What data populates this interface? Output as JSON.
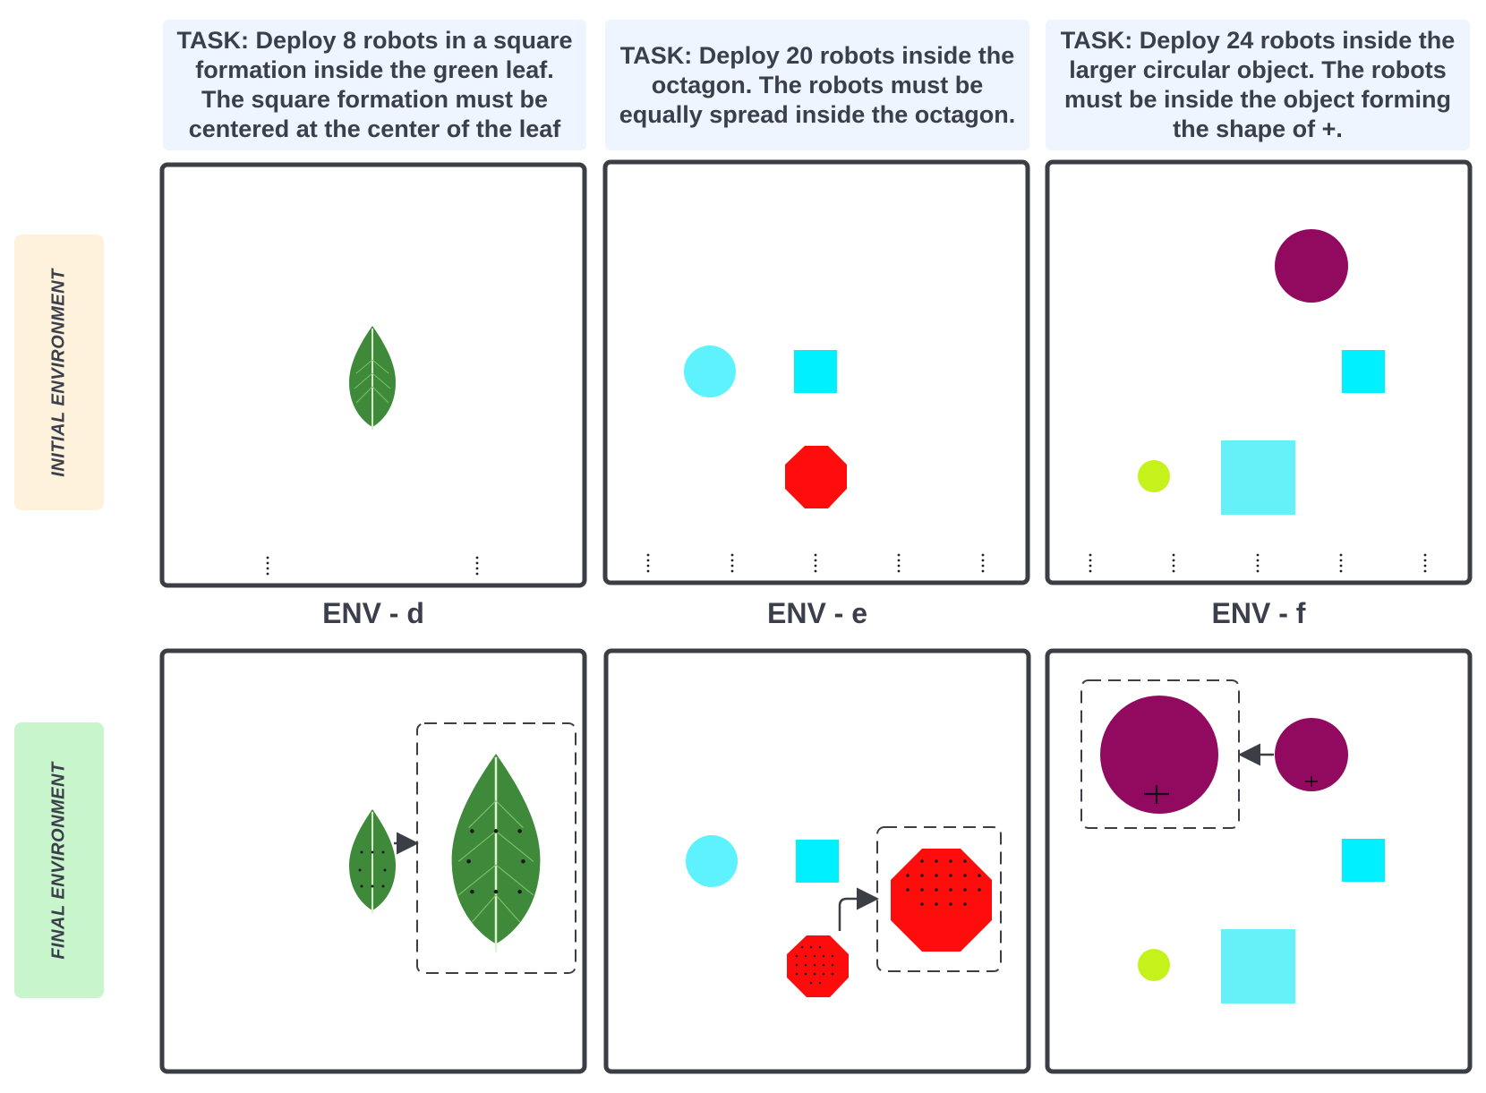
{
  "tasks": {
    "d": "TASK: Deploy 8 robots in a square formation inside the green leaf. The square formation must be centered at the center of the leaf",
    "e": "TASK: Deploy 20 robots inside the octagon. The robots must be equally spread inside the octagon.",
    "f": "TASK: Deploy 24 robots inside the larger circular object. The robots must be inside the object forming the shape of +."
  },
  "row_labels": {
    "initial": "INITIAL ENVIRONMENT",
    "final": "FINAL ENVIRONMENT"
  },
  "env_labels": {
    "d": "ENV - d",
    "e": "ENV - e",
    "f": "ENV - f"
  },
  "colors": {
    "text": "#3a3f4b",
    "task_bg": "#eef5ff",
    "initial_bg": "#fff2dc",
    "final_bg": "#c8f5cc",
    "panel_border": "#3b3f45",
    "leaf": "#3f8a3a",
    "leaf_dark": "#2a6a2a",
    "cyan": "#5ef2ff",
    "cyan_square": "#00f0ff",
    "light_cyan": "#66f0f8",
    "red": "#ff0d0d",
    "purple": "#920a60",
    "yellow_green": "#c4f21a"
  }
}
